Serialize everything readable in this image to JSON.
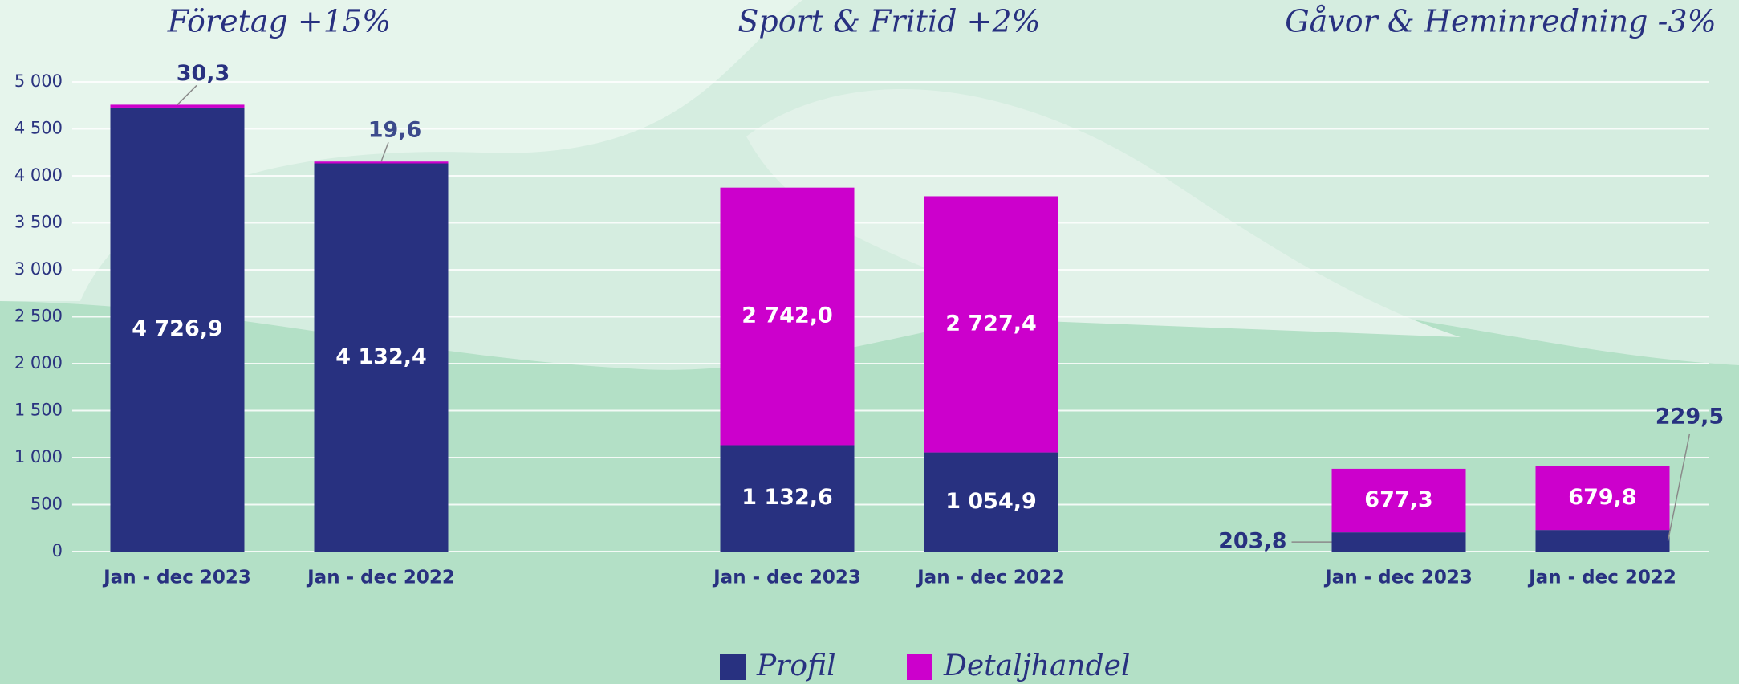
{
  "chart_data": {
    "type": "bar",
    "stacked": true,
    "groups": [
      "Företag +15%",
      "Sport & Fritid +2%",
      "Gåvor & Heminredning -3%"
    ],
    "categories": [
      "Jan - dec 2023",
      "Jan - dec 2022",
      "Jan - dec 2023",
      "Jan - dec 2022",
      "Jan - dec 2023",
      "Jan - dec 2022"
    ],
    "series": [
      {
        "name": "Profil",
        "color": "#283180",
        "values": [
          4726.9,
          4132.4,
          1132.6,
          1054.9,
          203.8,
          229.5
        ],
        "value_labels": [
          "4 726,9",
          "4 132,4",
          "1 132,6",
          "1 054,9",
          "203,8",
          "229,5"
        ]
      },
      {
        "name": "Detaljhandel",
        "color": "#cc00cc",
        "values": [
          30.3,
          19.6,
          2742.0,
          2727.4,
          677.3,
          679.8
        ],
        "value_labels": [
          "30,3",
          "19,6",
          "2 742,0",
          "2 727,4",
          "677,3",
          "679,8"
        ]
      }
    ],
    "ylim": [
      0,
      5000
    ],
    "yticks": [
      0,
      500,
      {
        "value": 1000,
        "label": "1 000"
      },
      {
        "value": 1500,
        "label": "1 500"
      },
      {
        "value": 2000,
        "label": "2 000"
      },
      {
        "value": 2500,
        "label": "2 500"
      },
      {
        "value": 3000,
        "label": "3 000"
      },
      {
        "value": 3500,
        "label": "3 500"
      },
      {
        "value": 4000,
        "label": "4 000"
      },
      {
        "value": 4500,
        "label": "4 500"
      },
      {
        "value": 5000,
        "label": "5 000"
      }
    ],
    "grid": true,
    "legend": "bottom"
  }
}
